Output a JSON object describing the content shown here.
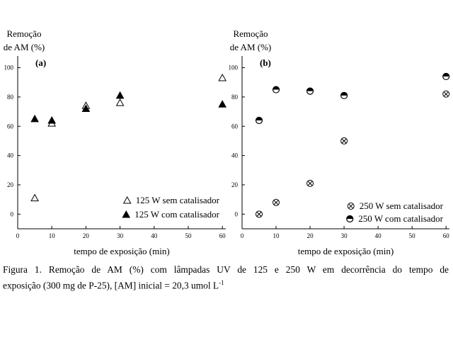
{
  "caption": {
    "line1": "Figura 1. Remoção de AM (%) com lâmpadas UV de 125 e 250 W em decorrência do tempo de",
    "line2": "exposição (300 mg de P-25), [AM] inicial = 20,3 umol L",
    "superscript": "-1"
  },
  "chart_data": [
    {
      "type": "scatter",
      "panel_label": "(a)",
      "ylabel_line1": "Remoção",
      "ylabel_line2": "de AM (%)",
      "xlabel": "tempo de exposição (min)",
      "x_ticks": [
        0,
        10,
        20,
        30,
        40,
        50,
        60
      ],
      "y_ticks": [
        0,
        20,
        40,
        60,
        80,
        100
      ],
      "xlim": [
        0,
        61
      ],
      "ylim": [
        -10,
        108
      ],
      "legend_position": "bottom-right",
      "series": [
        {
          "name": "125 W sem catalisador",
          "marker": "triangle-open",
          "x": [
            5,
            10,
            20,
            30,
            60
          ],
          "y": [
            11,
            62,
            74,
            76,
            93
          ]
        },
        {
          "name": "125 W com catalisador",
          "marker": "triangle-filled",
          "x": [
            5,
            10,
            20,
            30,
            60
          ],
          "y": [
            65,
            64,
            72,
            81,
            75
          ]
        }
      ]
    },
    {
      "type": "scatter",
      "panel_label": "(b)",
      "ylabel_line1": "Remoção",
      "ylabel_line2": "de AM (%)",
      "xlabel": "tempo de exposição (min)",
      "x_ticks": [
        0,
        10,
        20,
        30,
        40,
        50,
        60
      ],
      "y_ticks": [
        0,
        20,
        40,
        60,
        80,
        100
      ],
      "xlim": [
        0,
        61
      ],
      "ylim": [
        -10,
        108
      ],
      "legend_position": "bottom-right",
      "series": [
        {
          "name": "250 W sem catalisador",
          "marker": "circle-x",
          "x": [
            5,
            10,
            20,
            30,
            60
          ],
          "y": [
            0,
            8,
            21,
            50,
            82
          ]
        },
        {
          "name": "250 W com catalisador",
          "marker": "circle-half",
          "x": [
            5,
            10,
            20,
            30,
            60
          ],
          "y": [
            64,
            85,
            84,
            81,
            94
          ]
        }
      ]
    }
  ]
}
